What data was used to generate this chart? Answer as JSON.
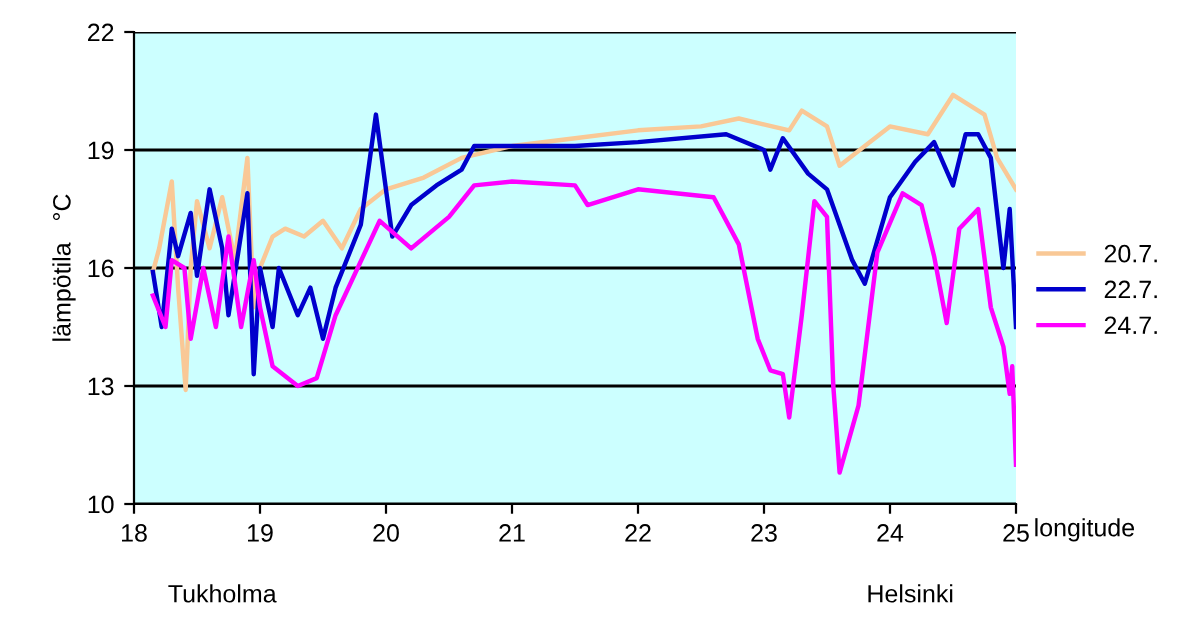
{
  "chart_data": {
    "type": "line",
    "xlabel": "longitude",
    "ylabel": "lämpötila   °C",
    "xlim": [
      18,
      25
    ],
    "xticks": [
      18,
      19,
      20,
      21,
      22,
      23,
      24,
      25
    ],
    "ylim": [
      10,
      22
    ],
    "yticks": [
      10,
      13,
      16,
      19,
      22
    ],
    "grid": "y",
    "legend": "right",
    "marker": "none",
    "line_style": "solid",
    "annotations": [
      "Tukholma",
      "Helsinki"
    ],
    "series": [
      {
        "name": "20.7.",
        "color": "#f9c896",
        "x": [
          18.15,
          18.2,
          18.3,
          18.35,
          18.41,
          18.45,
          18.5,
          18.6,
          18.7,
          18.8,
          18.9,
          18.95,
          19.0,
          19.1,
          19.2,
          19.35,
          19.5,
          19.65,
          19.8,
          20.0,
          20.3,
          20.6,
          21.0,
          21.5,
          22.0,
          22.5,
          22.8,
          23.2,
          23.3,
          23.5,
          23.6,
          23.8,
          24.0,
          24.3,
          24.5,
          24.75,
          24.85,
          25.0
        ],
        "values": [
          15.9,
          16.5,
          18.2,
          15.5,
          12.9,
          16.0,
          17.7,
          16.5,
          17.8,
          16.2,
          18.8,
          15.0,
          16.0,
          16.8,
          17.0,
          16.8,
          17.2,
          16.5,
          17.5,
          18.0,
          18.3,
          18.8,
          19.1,
          19.3,
          19.5,
          19.6,
          19.8,
          19.5,
          20.0,
          19.6,
          18.6,
          19.1,
          19.6,
          19.4,
          20.4,
          19.9,
          18.8,
          18.0
        ]
      },
      {
        "name": "22.7.",
        "color": "#0000cc",
        "x": [
          18.15,
          18.22,
          18.3,
          18.35,
          18.45,
          18.5,
          18.6,
          18.7,
          18.75,
          18.9,
          18.95,
          19.0,
          19.1,
          19.15,
          19.3,
          19.4,
          19.5,
          19.6,
          19.8,
          19.92,
          20.05,
          20.2,
          20.4,
          20.6,
          20.7,
          21.5,
          22.0,
          22.7,
          23.0,
          23.05,
          23.15,
          23.35,
          23.5,
          23.7,
          23.8,
          24.0,
          24.2,
          24.35,
          24.5,
          24.6,
          24.7,
          24.8,
          24.9,
          24.95,
          25.0
        ],
        "values": [
          15.9,
          14.5,
          17.0,
          16.3,
          17.4,
          15.8,
          18.0,
          16.5,
          14.8,
          17.9,
          13.3,
          16.0,
          14.5,
          16.0,
          14.8,
          15.5,
          14.2,
          15.5,
          17.1,
          19.9,
          16.8,
          17.6,
          18.1,
          18.5,
          19.1,
          19.1,
          19.2,
          19.4,
          19.0,
          18.5,
          19.3,
          18.4,
          18.0,
          16.2,
          15.6,
          17.8,
          18.7,
          19.2,
          18.1,
          19.4,
          19.4,
          18.8,
          16.0,
          17.5,
          14.5
        ]
      },
      {
        "name": "24.7.",
        "color": "#ff00ff",
        "x": [
          18.15,
          18.25,
          18.3,
          18.4,
          18.45,
          18.55,
          18.65,
          18.75,
          18.85,
          18.95,
          19.0,
          19.1,
          19.3,
          19.45,
          19.6,
          19.95,
          20.2,
          20.5,
          20.7,
          21.0,
          21.5,
          21.6,
          22.0,
          22.6,
          22.8,
          22.95,
          23.05,
          23.15,
          23.2,
          23.3,
          23.4,
          23.5,
          23.55,
          23.6,
          23.75,
          23.9,
          24.1,
          24.25,
          24.35,
          24.45,
          24.55,
          24.7,
          24.8,
          24.9,
          24.95,
          24.97,
          25.0
        ],
        "values": [
          15.3,
          14.5,
          16.2,
          16.0,
          14.2,
          16.0,
          14.5,
          16.8,
          14.5,
          16.2,
          15.0,
          13.5,
          13.0,
          13.2,
          14.8,
          17.2,
          16.5,
          17.3,
          18.1,
          18.2,
          18.1,
          17.6,
          18.0,
          17.8,
          16.6,
          14.2,
          13.4,
          13.3,
          12.2,
          14.8,
          17.7,
          17.3,
          13.0,
          10.8,
          12.5,
          16.4,
          17.9,
          17.6,
          16.3,
          14.6,
          17.0,
          17.5,
          15.0,
          14.0,
          12.8,
          13.5,
          11.0
        ]
      }
    ]
  }
}
